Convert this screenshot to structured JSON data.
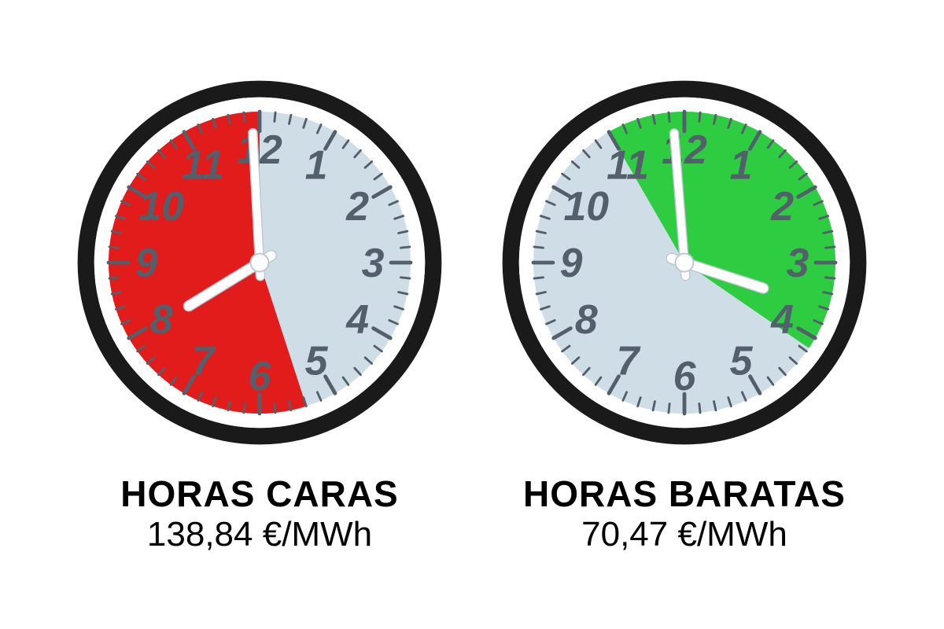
{
  "colors": {
    "background": "#ffffff",
    "face": "#cfdde7",
    "ring_outer": "#1a1a1a",
    "ring_inner": "#ffffff",
    "tick": "#53606c",
    "numeral": "#53606c",
    "hand": "#ffffff",
    "hand_edge": "#bfc8d0",
    "expensive_fill": "#e21b1b",
    "cheap_fill": "#2ecc40",
    "text": "#000000"
  },
  "geometry": {
    "radius": 230,
    "ring_outer_w": 22,
    "ring_inner_w": 10,
    "face_r": 200,
    "minor_tick_len": 12,
    "major_tick_len": 26,
    "numeral_r": 150,
    "numeral_fontsize": 54,
    "minute_hand_len": 172,
    "hour_hand_len": 110,
    "hand_w_minute": 10,
    "hand_w_hour": 12,
    "hub_r": 12
  },
  "clocks": [
    {
      "id": "expensive",
      "title": "HORAS CARAS",
      "price": "138,84 €/MWh",
      "sector": {
        "start_hour": 5.4,
        "end_hour": 12.0,
        "fill_key": "expensive_fill"
      },
      "hands": {
        "hour": 7.95,
        "minute": 11.9
      }
    },
    {
      "id": "cheap",
      "title": "HORAS BARATAS",
      "price": "70,47 €/MWh",
      "sector": {
        "start_hour": 11.0,
        "end_hour": 4.15,
        "fill_key": "cheap_fill"
      },
      "hands": {
        "hour": 3.6,
        "minute": 11.85
      }
    }
  ]
}
